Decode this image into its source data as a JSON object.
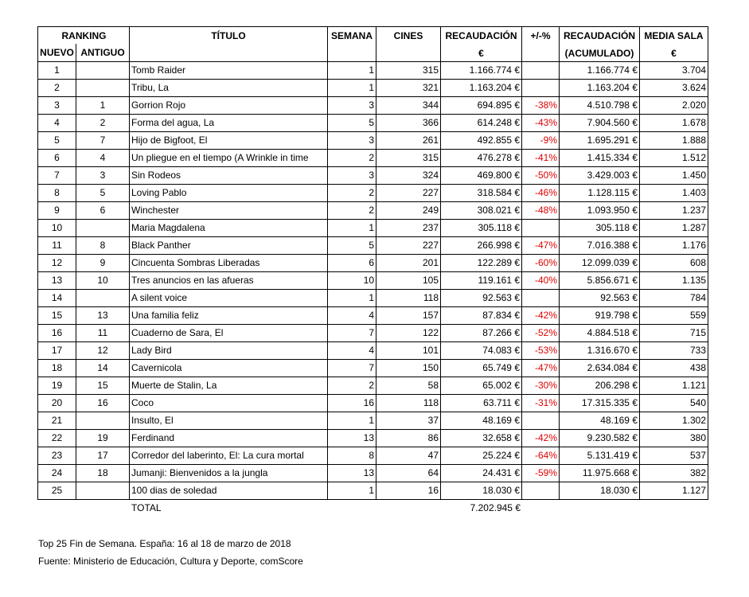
{
  "header": {
    "ranking": "RANKING",
    "nuevo": "NUEVO",
    "antiguo": "ANTIGUO",
    "columns": [
      [
        "TÍTULO"
      ],
      [
        "SEMANA"
      ],
      [
        "CINES"
      ],
      [
        "RECAUDACIÓN",
        "€"
      ],
      [
        "+/-%"
      ],
      [
        "RECAUDACIÓN",
        "(ACUMULADO)"
      ],
      [
        "MEDIA SALA",
        "€"
      ]
    ]
  },
  "table": {
    "rows": [
      [
        "1",
        null,
        "Tomb Raider",
        "1",
        "315",
        "1.166.774 €",
        null,
        "1.166.774 €",
        "3.704"
      ],
      [
        "2",
        null,
        "Tribu, La",
        "1",
        "321",
        "1.163.204 €",
        null,
        "1.163.204 €",
        "3.624"
      ],
      [
        "3",
        "1",
        "Gorrion Rojo",
        "3",
        "344",
        "694.895 €",
        "-38%",
        "4.510.798 €",
        "2.020"
      ],
      [
        "4",
        "2",
        "Forma del agua, La",
        "5",
        "366",
        "614.248 €",
        "-43%",
        "7.904.560 €",
        "1.678"
      ],
      [
        "5",
        "7",
        "Hijo de Bigfoot, El",
        "3",
        "261",
        "492.855 €",
        "-9%",
        "1.695.291 €",
        "1.888"
      ],
      [
        "6",
        "4",
        "Un pliegue en el tiempo (A Wrinkle in time",
        "2",
        "315",
        "476.278 €",
        "-41%",
        "1.415.334 €",
        "1.512"
      ],
      [
        "7",
        "3",
        "Sin Rodeos",
        "3",
        "324",
        "469.800 €",
        "-50%",
        "3.429.003 €",
        "1.450"
      ],
      [
        "8",
        "5",
        "Loving Pablo",
        "2",
        "227",
        "318.584 €",
        "-46%",
        "1.128.115 €",
        "1.403"
      ],
      [
        "9",
        "6",
        "Winchester",
        "2",
        "249",
        "308.021 €",
        "-48%",
        "1.093.950 €",
        "1.237"
      ],
      [
        "10",
        null,
        "Maria Magdalena",
        "1",
        "237",
        "305.118 €",
        null,
        "305.118 €",
        "1.287"
      ],
      [
        "11",
        "8",
        "Black Panther",
        "5",
        "227",
        "266.998 €",
        "-47%",
        "7.016.388 €",
        "1.176"
      ],
      [
        "12",
        "9",
        "Cincuenta Sombras Liberadas",
        "6",
        "201",
        "122.289 €",
        "-60%",
        "12.099.039 €",
        "608"
      ],
      [
        "13",
        "10",
        "Tres anuncios en las afueras",
        "10",
        "105",
        "119.161 €",
        "-40%",
        "5.856.671 €",
        "1.135"
      ],
      [
        "14",
        null,
        "A silent voice",
        "1",
        "118",
        "92.563 €",
        null,
        "92.563 €",
        "784"
      ],
      [
        "15",
        "13",
        "Una familia feliz",
        "4",
        "157",
        "87.834 €",
        "-42%",
        "919.798 €",
        "559"
      ],
      [
        "16",
        "11",
        "Cuaderno de Sara, El",
        "7",
        "122",
        "87.266 €",
        "-52%",
        "4.884.518 €",
        "715"
      ],
      [
        "17",
        "12",
        "Lady Bird",
        "4",
        "101",
        "74.083 €",
        "-53%",
        "1.316.670 €",
        "733"
      ],
      [
        "18",
        "14",
        "Cavernicola",
        "7",
        "150",
        "65.749 €",
        "-47%",
        "2.634.084 €",
        "438"
      ],
      [
        "19",
        "15",
        "Muerte de Stalin, La",
        "2",
        "58",
        "65.002 €",
        "-30%",
        "206.298 €",
        "1.121"
      ],
      [
        "20",
        "16",
        "Coco",
        "16",
        "118",
        "63.711 €",
        "-31%",
        "17.315.335 €",
        "540"
      ],
      [
        "21",
        null,
        "Insulto, El",
        "1",
        "37",
        "48.169 €",
        null,
        "48.169 €",
        "1.302"
      ],
      [
        "22",
        "19",
        "Ferdinand",
        "13",
        "86",
        "32.658 €",
        "-42%",
        "9.230.582 €",
        "380"
      ],
      [
        "23",
        "17",
        "Corredor del laberinto, El: La cura mortal",
        "8",
        "47",
        "25.224 €",
        "-64%",
        "5.131.419 €",
        "537"
      ],
      [
        "24",
        "18",
        "Jumanji: Bienvenidos a la jungla",
        "13",
        "64",
        "24.431 €",
        "-59%",
        "11.975.668 €",
        "382"
      ],
      [
        "25",
        null,
        "100 dias de soledad",
        "1",
        "16",
        "18.030 €",
        null,
        "18.030 €",
        "1.127"
      ]
    ],
    "total_label": "TOTAL",
    "total_value": "7.202.945 €"
  },
  "footer": {
    "line1": "Top 25 Fin de Semana. España: 16 al 18 de marzo de 2018",
    "line2": "Fuente: Ministerio de Educación, Cultura y Deporte, comScore"
  }
}
